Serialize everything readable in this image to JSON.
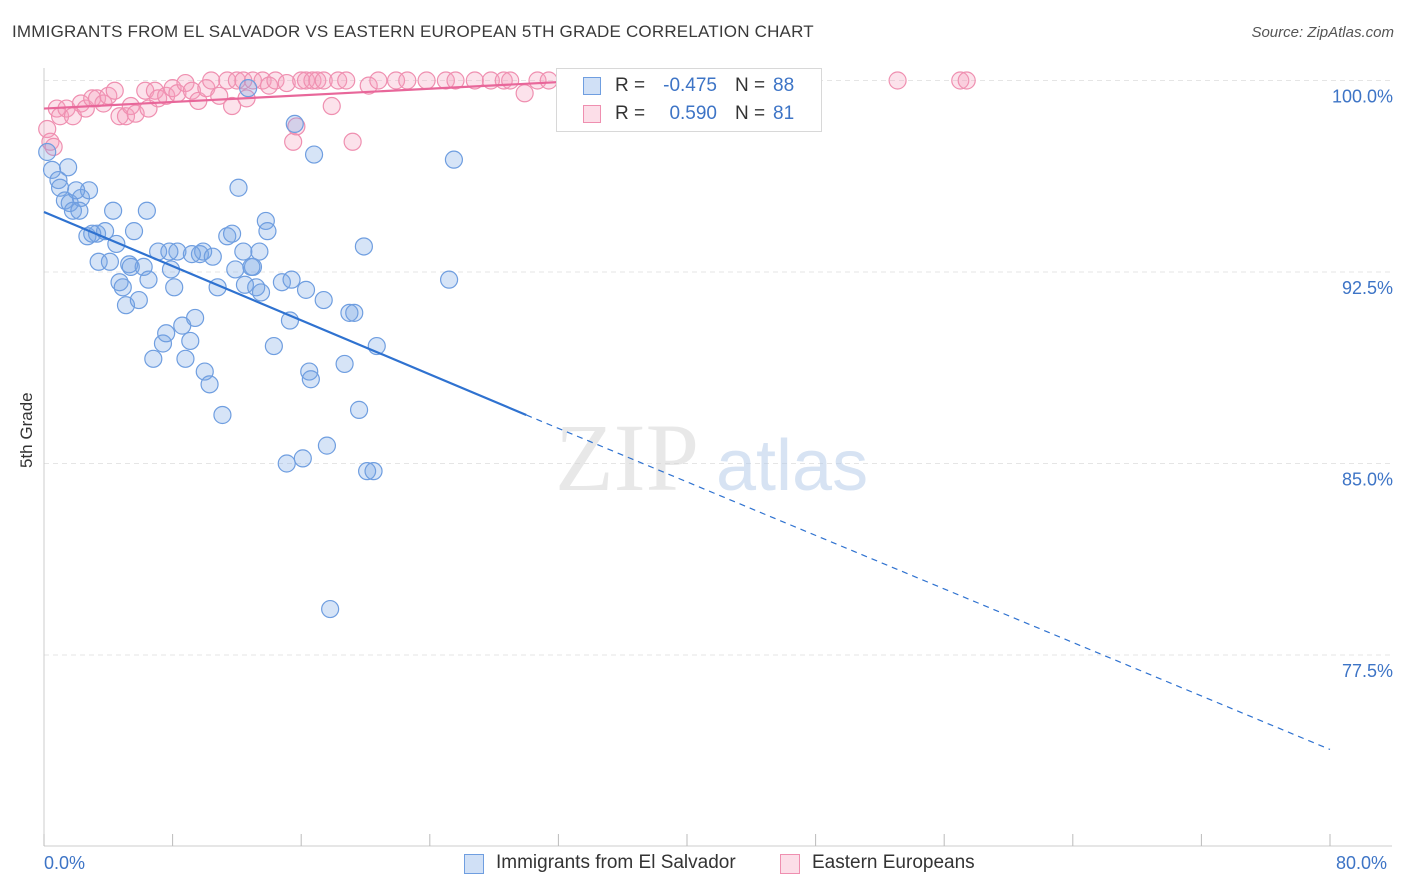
{
  "title": "IMMIGRANTS FROM EL SALVADOR VS EASTERN EUROPEAN 5TH GRADE CORRELATION CHART",
  "source": "Source: ZipAtlas.com",
  "watermark": {
    "zip": "ZIP",
    "atlas": "atlas"
  },
  "colors": {
    "blue": "#6f9ee0",
    "blue_fill": "rgba(120,165,230,0.30)",
    "blue_line": "#2f72d0",
    "pink": "#ef8fb0",
    "pink_fill": "rgba(245,160,190,0.30)",
    "pink_line": "#e8679a",
    "axis_text": "#3d74c6",
    "grid": "#e5e5e5"
  },
  "legend_top": {
    "rows": [
      {
        "r_label": "R =",
        "r_value": "-0.475",
        "n_label": "N =",
        "n_value": "88"
      },
      {
        "r_label": "R =",
        "r_value": "0.590",
        "n_label": "N =",
        "n_value": "81"
      }
    ]
  },
  "bottom_legend": [
    "Immigrants from El Salvador",
    "Eastern Europeans"
  ],
  "chart_data": {
    "type": "scatter",
    "title": "IMMIGRANTS FROM EL SALVADOR VS EASTERN EUROPEAN 5TH GRADE CORRELATION CHART",
    "xlabel": "",
    "ylabel": "5th Grade",
    "x_tick_labels": [
      "0.0%",
      "80.0%"
    ],
    "y_tick_labels": [
      "100.0%",
      "92.5%",
      "85.0%",
      "77.5%"
    ],
    "y_ticks": [
      100.0,
      92.5,
      85.0,
      77.5
    ],
    "xlim": [
      0,
      80
    ],
    "ylim": [
      71.5,
      100.5
    ],
    "grid": true,
    "legend_placement": "bottom",
    "series": [
      {
        "name": "Immigrants from El Salvador",
        "color": "blue",
        "r": -0.475,
        "n": 88,
        "trend": {
          "x": [
            0,
            30
          ],
          "y": [
            94.85,
            86.9
          ],
          "dashed_to": [
            80,
            73.8
          ]
        },
        "points": [
          [
            0.2,
            97.2
          ],
          [
            0.5,
            96.5
          ],
          [
            0.9,
            96.1
          ],
          [
            1.0,
            95.8
          ],
          [
            1.3,
            95.3
          ],
          [
            1.6,
            95.2
          ],
          [
            1.8,
            94.9
          ],
          [
            2.3,
            95.4
          ],
          [
            2.2,
            94.9
          ],
          [
            2.8,
            95.7
          ],
          [
            2.7,
            93.9
          ],
          [
            3.3,
            94.0
          ],
          [
            3.4,
            92.9
          ],
          [
            3.8,
            94.1
          ],
          [
            4.1,
            92.9
          ],
          [
            4.5,
            93.6
          ],
          [
            4.3,
            94.9
          ],
          [
            4.7,
            92.1
          ],
          [
            5.1,
            91.2
          ],
          [
            5.3,
            92.8
          ],
          [
            5.4,
            92.7
          ],
          [
            5.6,
            94.1
          ],
          [
            5.9,
            91.4
          ],
          [
            6.2,
            92.7
          ],
          [
            6.5,
            92.2
          ],
          [
            6.4,
            94.9
          ],
          [
            6.8,
            89.1
          ],
          [
            7.1,
            93.3
          ],
          [
            7.4,
            89.7
          ],
          [
            7.6,
            90.1
          ],
          [
            7.9,
            92.6
          ],
          [
            8.1,
            91.9
          ],
          [
            8.3,
            93.3
          ],
          [
            8.6,
            90.4
          ],
          [
            8.8,
            89.1
          ],
          [
            9.1,
            89.8
          ],
          [
            9.4,
            90.7
          ],
          [
            9.7,
            93.2
          ],
          [
            9.9,
            93.3
          ],
          [
            10.0,
            88.6
          ],
          [
            10.3,
            88.1
          ],
          [
            10.5,
            93.1
          ],
          [
            10.8,
            91.9
          ],
          [
            11.1,
            86.9
          ],
          [
            11.4,
            93.9
          ],
          [
            11.7,
            94.0
          ],
          [
            11.9,
            92.6
          ],
          [
            12.1,
            95.8
          ],
          [
            12.4,
            93.3
          ],
          [
            12.5,
            92.0
          ],
          [
            12.7,
            99.7
          ],
          [
            13.0,
            92.7
          ],
          [
            13.2,
            91.9
          ],
          [
            13.4,
            93.3
          ],
          [
            13.5,
            91.7
          ],
          [
            13.8,
            94.5
          ],
          [
            13.9,
            94.1
          ],
          [
            14.3,
            89.6
          ],
          [
            14.8,
            92.1
          ],
          [
            15.1,
            85.0
          ],
          [
            15.3,
            90.6
          ],
          [
            15.4,
            92.2
          ],
          [
            15.6,
            98.3
          ],
          [
            16.1,
            85.2
          ],
          [
            16.5,
            88.6
          ],
          [
            16.6,
            88.3
          ],
          [
            16.8,
            97.1
          ],
          [
            17.4,
            91.4
          ],
          [
            17.6,
            85.7
          ],
          [
            17.8,
            79.3
          ],
          [
            18.7,
            88.9
          ],
          [
            19.0,
            90.9
          ],
          [
            19.3,
            90.9
          ],
          [
            19.6,
            87.1
          ],
          [
            19.9,
            93.5
          ],
          [
            20.1,
            84.7
          ],
          [
            20.5,
            84.7
          ],
          [
            20.7,
            89.6
          ],
          [
            25.2,
            92.2
          ],
          [
            25.5,
            96.9
          ],
          [
            1.5,
            96.6
          ],
          [
            2.0,
            95.7
          ],
          [
            3.0,
            94.0
          ],
          [
            4.9,
            91.9
          ],
          [
            7.8,
            93.3
          ],
          [
            9.2,
            93.2
          ],
          [
            12.9,
            92.7
          ],
          [
            16.3,
            91.8
          ]
        ]
      },
      {
        "name": "Eastern Europeans",
        "color": "pink",
        "r": 0.59,
        "n": 81,
        "trend": {
          "x": [
            0,
            37
          ],
          "y": [
            98.9,
            100.1
          ]
        },
        "points": [
          [
            0.2,
            98.1
          ],
          [
            0.4,
            97.6
          ],
          [
            0.6,
            97.4
          ],
          [
            0.8,
            98.9
          ],
          [
            1.0,
            98.6
          ],
          [
            1.4,
            98.9
          ],
          [
            1.8,
            98.6
          ],
          [
            2.3,
            99.1
          ],
          [
            2.6,
            98.9
          ],
          [
            3.0,
            99.3
          ],
          [
            3.3,
            99.3
          ],
          [
            3.7,
            99.1
          ],
          [
            4.0,
            99.4
          ],
          [
            4.4,
            99.6
          ],
          [
            4.7,
            98.6
          ],
          [
            5.1,
            98.6
          ],
          [
            5.4,
            99.0
          ],
          [
            5.7,
            98.7
          ],
          [
            6.3,
            99.6
          ],
          [
            6.5,
            98.9
          ],
          [
            6.9,
            99.6
          ],
          [
            7.1,
            99.3
          ],
          [
            7.6,
            99.4
          ],
          [
            8.0,
            99.7
          ],
          [
            8.3,
            99.5
          ],
          [
            8.8,
            99.9
          ],
          [
            9.2,
            99.6
          ],
          [
            9.6,
            99.2
          ],
          [
            10.1,
            99.7
          ],
          [
            10.4,
            100.0
          ],
          [
            10.9,
            99.4
          ],
          [
            11.4,
            100.0
          ],
          [
            11.7,
            99.0
          ],
          [
            12.0,
            100.0
          ],
          [
            12.4,
            100.0
          ],
          [
            12.6,
            99.3
          ],
          [
            13.0,
            100.0
          ],
          [
            13.6,
            100.0
          ],
          [
            14.0,
            99.8
          ],
          [
            14.4,
            100.0
          ],
          [
            15.1,
            99.9
          ],
          [
            15.5,
            97.6
          ],
          [
            16.0,
            100.0
          ],
          [
            16.3,
            100.0
          ],
          [
            16.7,
            100.0
          ],
          [
            17.0,
            100.0
          ],
          [
            17.4,
            100.0
          ],
          [
            17.9,
            99.0
          ],
          [
            18.3,
            100.0
          ],
          [
            18.8,
            100.0
          ],
          [
            19.2,
            97.6
          ],
          [
            20.2,
            99.8
          ],
          [
            20.8,
            100.0
          ],
          [
            21.9,
            100.0
          ],
          [
            22.6,
            100.0
          ],
          [
            23.8,
            100.0
          ],
          [
            25.0,
            100.0
          ],
          [
            25.6,
            100.0
          ],
          [
            26.8,
            100.0
          ],
          [
            27.8,
            100.0
          ],
          [
            28.6,
            100.0
          ],
          [
            29.0,
            100.0
          ],
          [
            29.9,
            99.5
          ],
          [
            30.7,
            100.0
          ],
          [
            31.4,
            100.0
          ],
          [
            33.0,
            100.0
          ],
          [
            34.8,
            100.0
          ],
          [
            37.2,
            100.0
          ],
          [
            38.1,
            100.0
          ],
          [
            39.7,
            100.0
          ],
          [
            40.3,
            100.0
          ],
          [
            41.9,
            100.0
          ],
          [
            42.1,
            100.0
          ],
          [
            45.0,
            100.0
          ],
          [
            46.0,
            100.0
          ],
          [
            47.2,
            100.0
          ],
          [
            47.7,
            100.0
          ],
          [
            53.1,
            100.0
          ],
          [
            57.0,
            100.0
          ],
          [
            57.4,
            100.0
          ],
          [
            15.7,
            98.2
          ]
        ]
      }
    ]
  }
}
